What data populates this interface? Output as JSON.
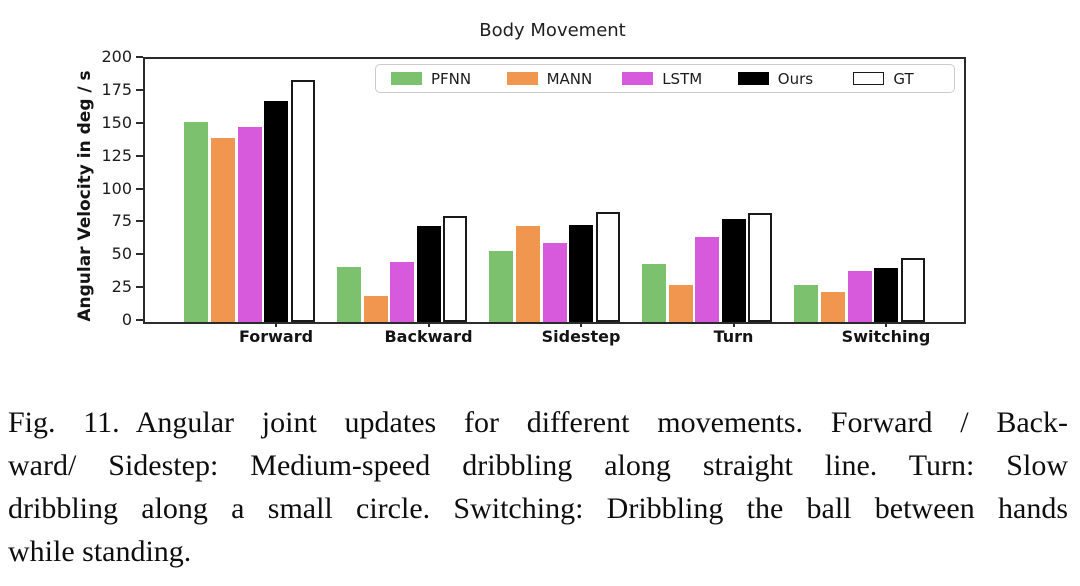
{
  "chart_data": {
    "type": "bar",
    "title": "Body Movement",
    "xlabel": "",
    "ylabel": "Angular Velocity in deg / s",
    "ylim": [
      0,
      200
    ],
    "yticks": [
      0,
      25,
      50,
      75,
      100,
      125,
      150,
      175,
      200
    ],
    "grid": false,
    "legend_position": "upper center inside",
    "categories": [
      "Forward",
      "Backward",
      "Sidestep",
      "Turn",
      "Switching"
    ],
    "series": [
      {
        "name": "PFNN",
        "color": "#7bc16e",
        "values": [
          152,
          42,
          54,
          44,
          28
        ]
      },
      {
        "name": "MANN",
        "color": "#f0964f",
        "values": [
          140,
          20,
          73,
          28,
          23
        ]
      },
      {
        "name": "LSTM",
        "color": "#d85adc",
        "values": [
          148,
          46,
          60,
          65,
          39
        ]
      },
      {
        "name": "Ours",
        "color": "#000000",
        "values": [
          168,
          73,
          74,
          78,
          41
        ]
      },
      {
        "name": "GT",
        "color": "#ffffff",
        "edge_color": "#1a1a1a",
        "values": [
          184,
          81,
          84,
          83,
          49
        ]
      }
    ]
  },
  "figure": {
    "caption": {
      "fig_label": "Fig. 11.",
      "lines": [
        "Angular joint updates for different movements. Forward / Back-",
        "ward/ Sidestep: Medium-speed dribbling along straight line. Turn: Slow",
        "dribbling along a small circle. Switching: Dribbling the ball between hands",
        "while standing."
      ]
    }
  }
}
